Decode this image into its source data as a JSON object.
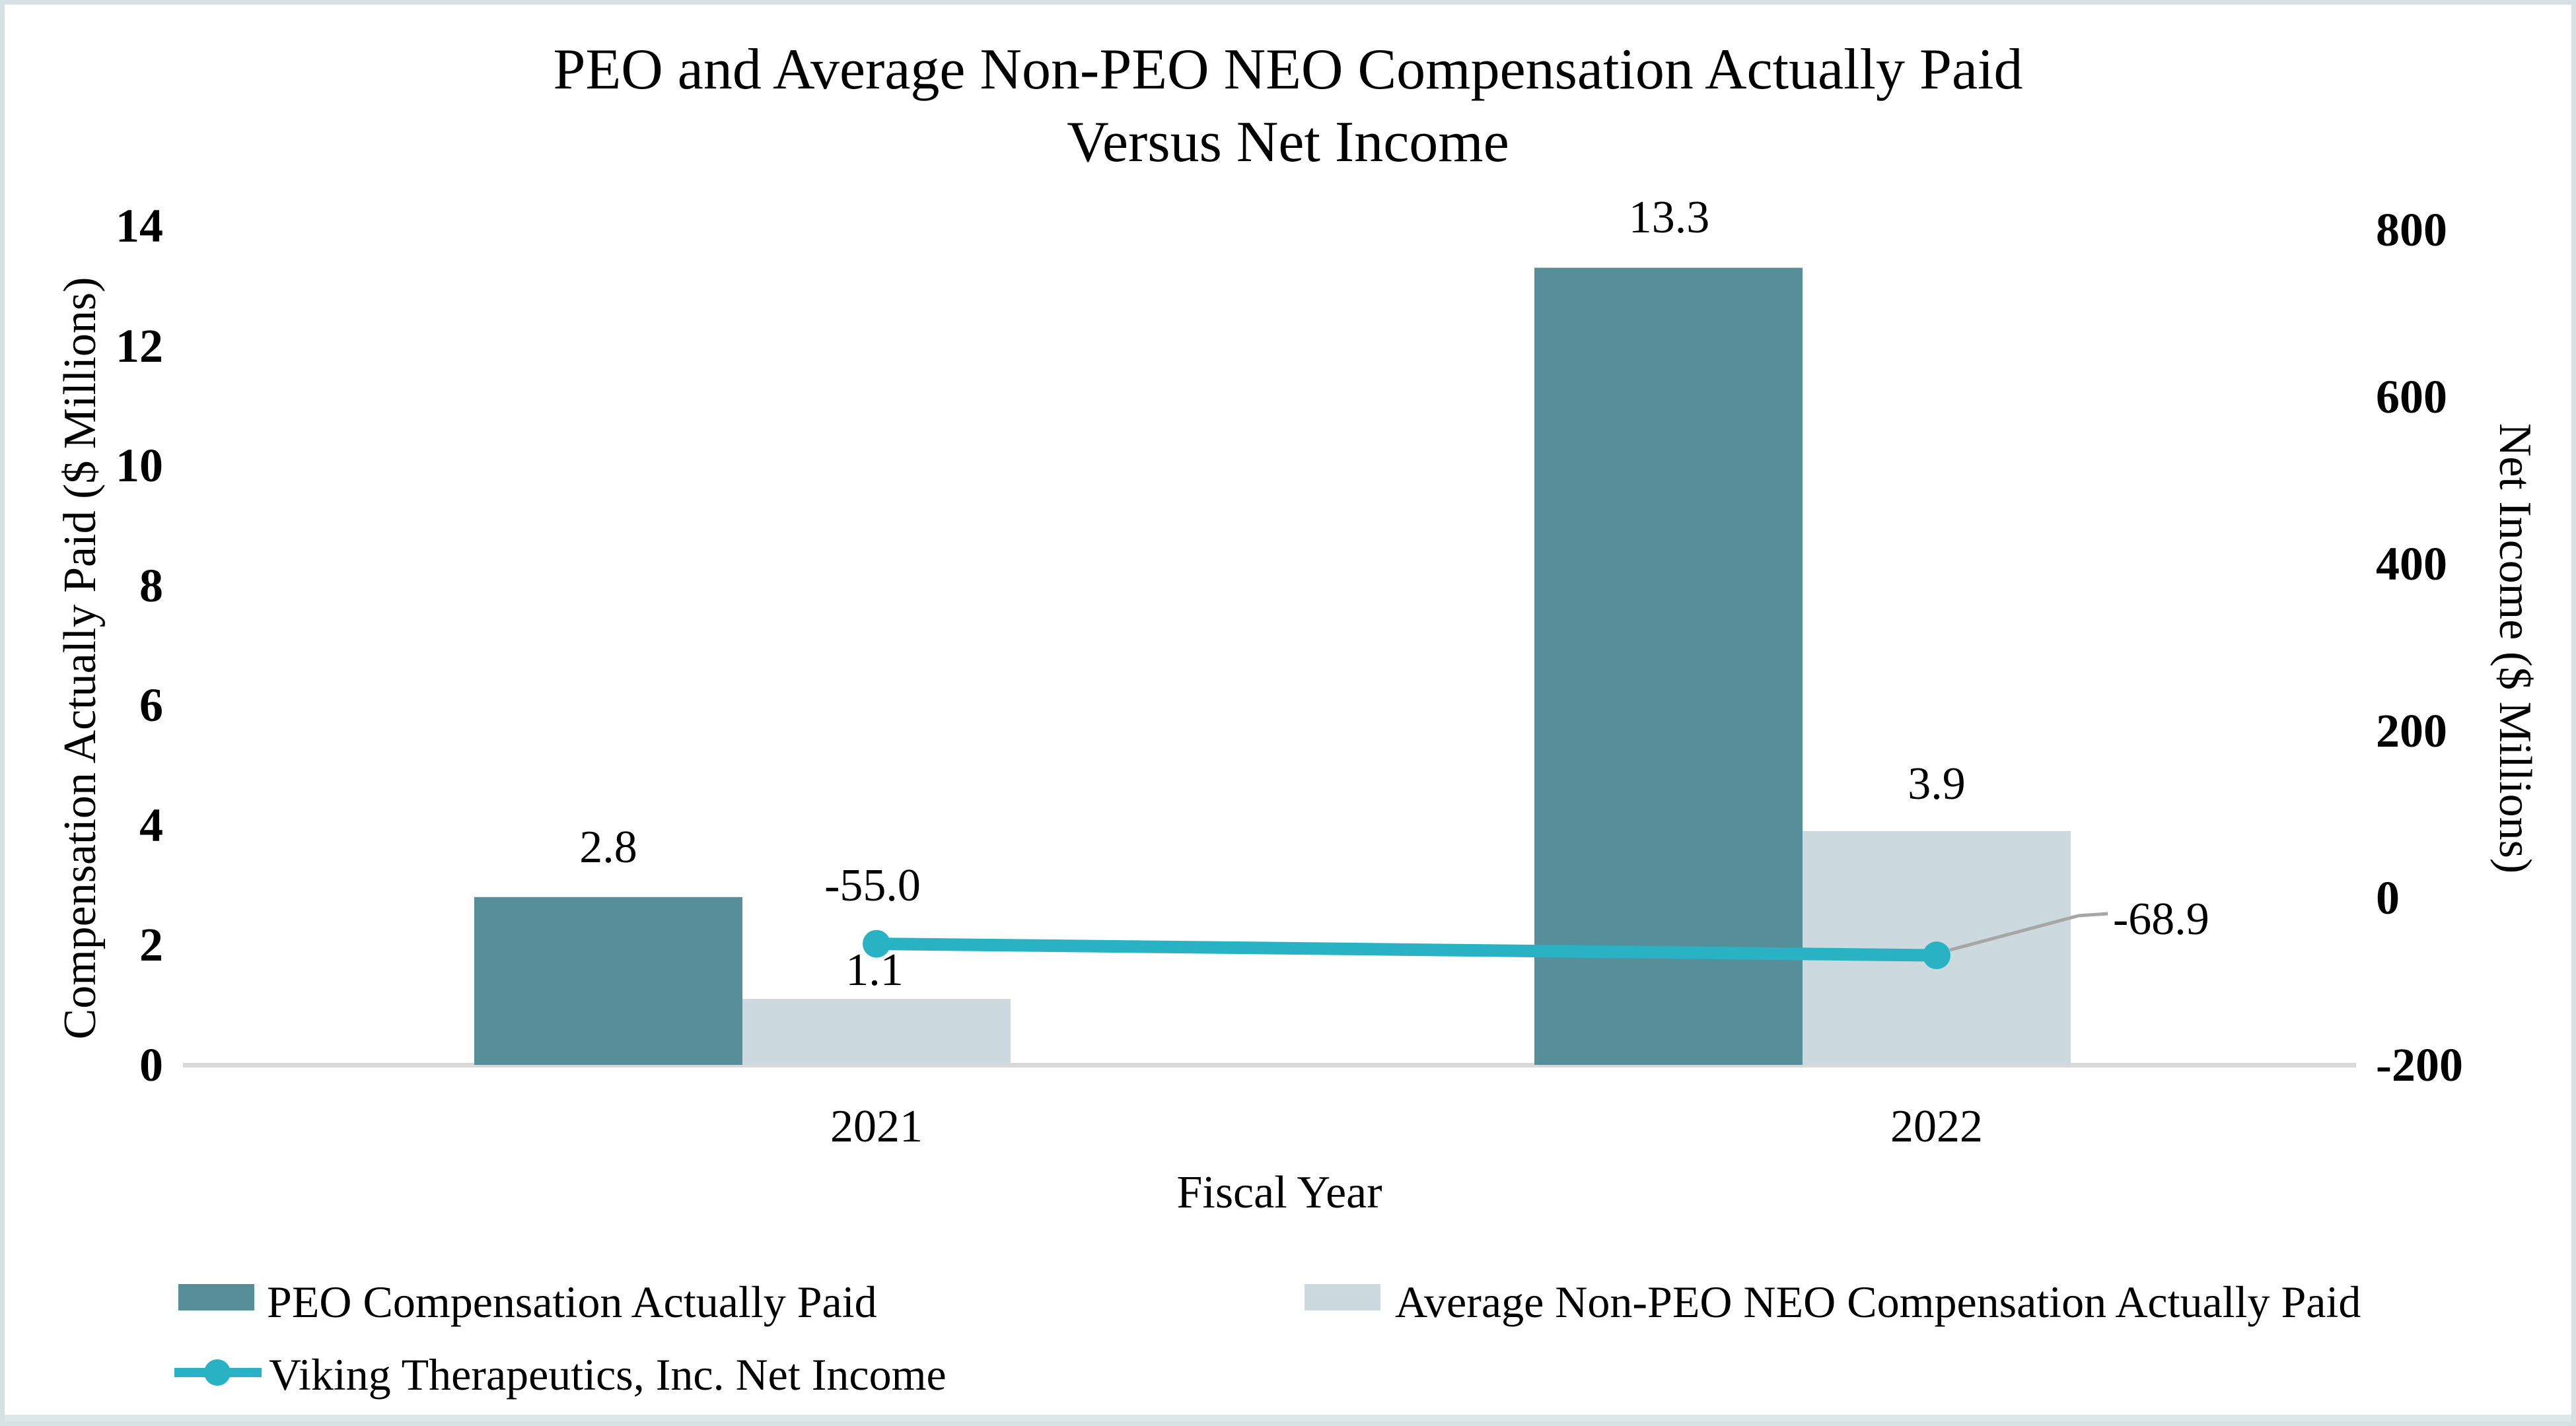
{
  "page": {
    "background": "#ffffff",
    "border_color": "#d6e1e4"
  },
  "chart_data": {
    "type": "combo-bar-line",
    "title_lines": [
      "PEO and Average Non-PEO NEO Compensation Actually Paid",
      "Versus Net Income"
    ],
    "categories": [
      "2021",
      "2022"
    ],
    "series": [
      {
        "name": "PEO Compensation Actually Paid",
        "type": "bar",
        "axis": "left",
        "color": "#568f99",
        "values": [
          2.8,
          13.3
        ],
        "labels": [
          "2.8",
          "13.3"
        ]
      },
      {
        "name": "Average Non-PEO NEO Compensation Actually Paid",
        "type": "bar",
        "axis": "left",
        "color": "#ccd9de",
        "values": [
          1.1,
          3.9
        ],
        "labels": [
          "1.1",
          "3.9"
        ]
      },
      {
        "name": "Viking Therapeutics, Inc. Net Income",
        "type": "line",
        "axis": "right",
        "marker": "circle",
        "color": "#29b2c4",
        "values": [
          -55.0,
          -68.9
        ],
        "labels": [
          "-55.0",
          "-68.9"
        ]
      }
    ],
    "x_axis": {
      "title": "Fiscal Year",
      "tick_labels": [
        "2021",
        "2022"
      ]
    },
    "left_axis": {
      "title": "Compensation Actually Paid ($ Millions)",
      "tick_labels": [
        "0",
        "2",
        "4",
        "6",
        "8",
        "10",
        "12",
        "14"
      ],
      "range": [
        0,
        14
      ],
      "step": 2
    },
    "right_axis": {
      "title": "Net Income ($ Millions)",
      "tick_labels": [
        "-200",
        "0",
        "200",
        "400",
        "600",
        "800"
      ],
      "range": [
        -200,
        800
      ],
      "step": 200
    },
    "grid": false,
    "legend_position": "bottom",
    "annotation_colors": {
      "leader_line": "#a6a6a6",
      "axis_line": "#d9d9d9"
    }
  }
}
